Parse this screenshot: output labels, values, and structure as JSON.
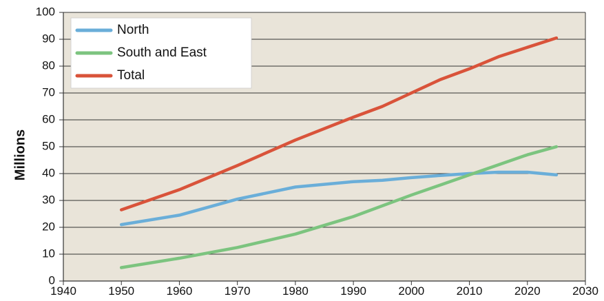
{
  "chart_data": {
    "type": "line",
    "title": "",
    "xlabel": "",
    "ylabel": "Millions",
    "xlim": [
      1940,
      2030
    ],
    "ylim": [
      0,
      100
    ],
    "x_ticks": [
      1940,
      1950,
      1960,
      1970,
      1980,
      1990,
      2000,
      2010,
      2020,
      2030
    ],
    "y_ticks": [
      0,
      10,
      20,
      30,
      40,
      50,
      60,
      70,
      80,
      90,
      100
    ],
    "grid": "horizontal",
    "legend_position": "top-left",
    "plot_background": "#e9e4d9",
    "series": [
      {
        "name": "North",
        "color": "#6aaed9",
        "x": [
          1950,
          1960,
          1970,
          1980,
          1990,
          1995,
          2000,
          2005,
          2010,
          2015,
          2020,
          2025
        ],
        "values": [
          21,
          24.5,
          30.5,
          35,
          37,
          37.5,
          38.5,
          39.3,
          40,
          40.5,
          40.5,
          39.5
        ]
      },
      {
        "name": "South and East",
        "color": "#7cc47f",
        "x": [
          1950,
          1960,
          1970,
          1980,
          1990,
          2000,
          2010,
          2020,
          2025
        ],
        "values": [
          5,
          8.5,
          12.5,
          17.5,
          24,
          32,
          39.5,
          47,
          50
        ]
      },
      {
        "name": "Total",
        "color": "#d9533a",
        "x": [
          1950,
          1960,
          1970,
          1980,
          1990,
          1995,
          2000,
          2005,
          2010,
          2015,
          2020,
          2025
        ],
        "values": [
          26.5,
          34,
          43,
          52.5,
          61,
          65,
          70,
          75,
          79,
          83.5,
          87,
          90.5
        ]
      }
    ]
  }
}
